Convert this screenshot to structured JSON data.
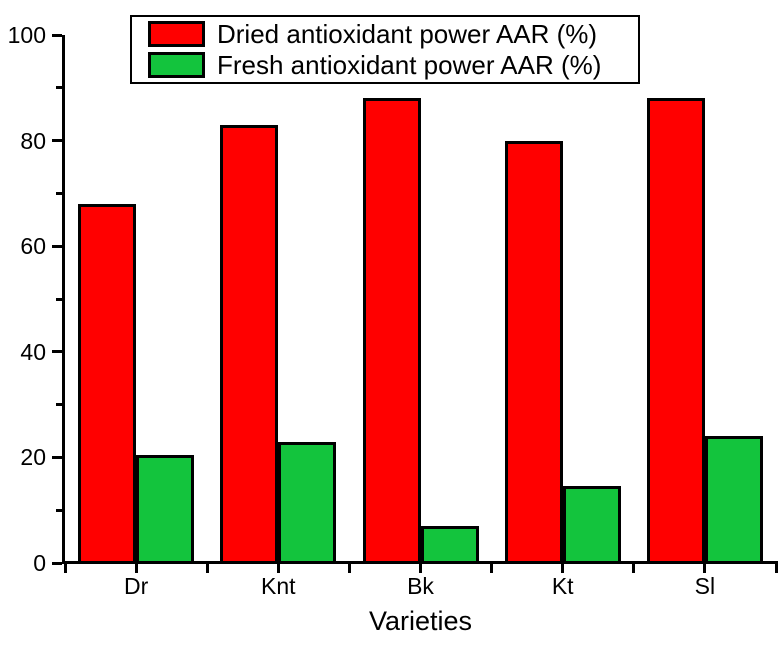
{
  "chart_data": {
    "type": "bar",
    "title": "",
    "xlabel": "Varieties",
    "ylabel": "",
    "categories": [
      "Dr",
      "Knt",
      "Bk",
      "Kt",
      "Sl"
    ],
    "series": [
      {
        "key": "dried",
        "name": "Dried antioxidant power AAR (%)",
        "color": "#FF0000",
        "values": [
          68,
          83,
          88,
          80,
          88
        ]
      },
      {
        "key": "fresh",
        "name": "Fresh antioxidant power AAR (%)",
        "color": "#13C43D",
        "values": [
          20.5,
          23,
          7,
          14.5,
          24
        ]
      }
    ],
    "ylim": [
      0,
      100
    ],
    "yticks": [
      0,
      20,
      40,
      60,
      80,
      100
    ],
    "minor_ytick_step": 10,
    "grid": false,
    "legend_position": "top-center",
    "bar_border_color": "#000000",
    "axis_color": "#000000",
    "background_color": "#FFFFFF",
    "text_color": "#000000"
  }
}
